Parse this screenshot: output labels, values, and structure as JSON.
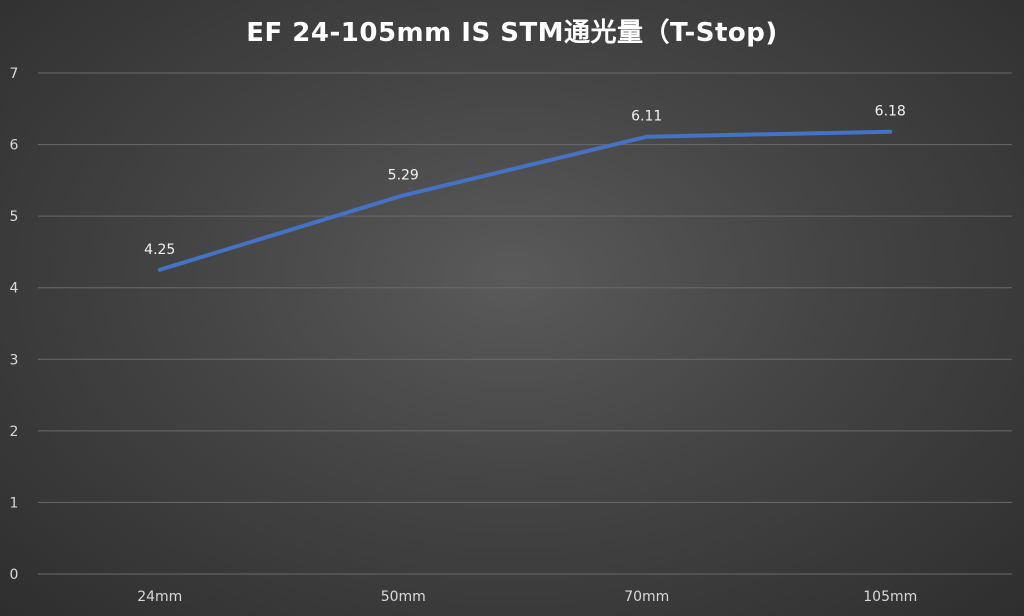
{
  "chart_data": {
    "type": "line",
    "title": "EF 24-105mm IS STM通光量（T-Stop)",
    "categories": [
      "24mm",
      "50mm",
      "70mm",
      "105mm"
    ],
    "series": [
      {
        "values": [
          4.25,
          5.29,
          6.11,
          6.18
        ],
        "color": "#4472c4"
      }
    ],
    "data_labels": [
      "4.25",
      "5.29",
      "6.11",
      "6.18"
    ],
    "ylim": [
      0,
      7
    ],
    "yticks": [
      0,
      1,
      2,
      3,
      4,
      5,
      6,
      7
    ],
    "grid": true,
    "legend": "none",
    "gridline_color": "#6a6a6a",
    "label_color": "#d9d9d9"
  }
}
